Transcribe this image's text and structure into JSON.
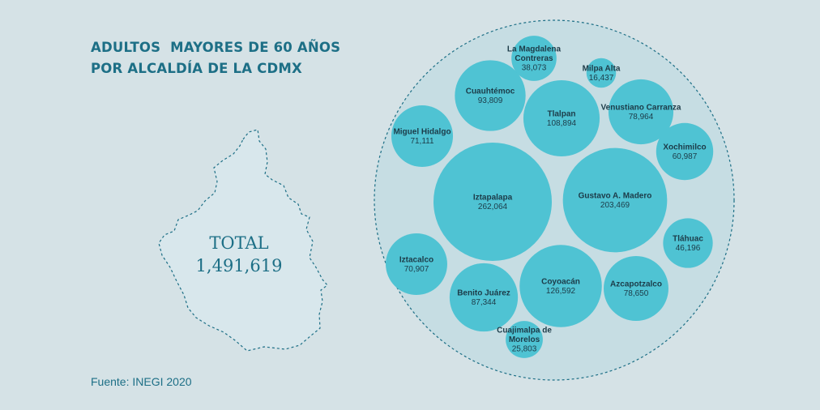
{
  "title_line1": "ADULTOS  MAYORES DE 60 AÑOS",
  "title_line2": "POR ALCALDÍA DE LA CDMX",
  "total_label": "TOTAL",
  "total_value": "1,491,619",
  "source": "Fuente: INEGI 2020",
  "colors": {
    "background": "#d5e2e6",
    "bubble": "#4fc3d3",
    "accent": "#1d6f86",
    "text": "#1c3b48"
  },
  "chart_data": {
    "type": "bubble",
    "title": "ADULTOS  MAYORES DE 60 AÑOS POR ALCALDÍA DE LA CDMX",
    "total": 1491619,
    "categories": [
      "Iztapalapa",
      "Gustavo A. Madero",
      "Coyoacán",
      "Tlalpan",
      "Cuauhtémoc",
      "Benito Juárez",
      "Venustiano Carranza",
      "Azcapotzalco",
      "Miguel Hidalgo",
      "Iztacalco",
      "Xochimilco",
      "Tláhuac",
      "La Magdalena Contreras",
      "Cuajimalpa de Morelos",
      "Milpa Alta"
    ],
    "values": [
      262064,
      203469,
      126592,
      108894,
      93809,
      87344,
      78964,
      78650,
      71111,
      70907,
      60987,
      46196,
      38073,
      25803,
      16437
    ],
    "labels": [
      {
        "name": [
          "Iztapalapa"
        ],
        "value": "262,064"
      },
      {
        "name": [
          "Gustavo A. Madero"
        ],
        "value": "203,469"
      },
      {
        "name": [
          "Coyoacán"
        ],
        "value": "126,592"
      },
      {
        "name": [
          "Tlalpan"
        ],
        "value": "108,894"
      },
      {
        "name": [
          "Cuauhtémoc"
        ],
        "value": "93,809"
      },
      {
        "name": [
          "Benito Juárez"
        ],
        "value": "87,344"
      },
      {
        "name": [
          "Venustiano Carranza"
        ],
        "value": "78,964"
      },
      {
        "name": [
          "Azcapotzalco"
        ],
        "value": "78,650"
      },
      {
        "name": [
          "Miguel Hidalgo"
        ],
        "value": "71,111"
      },
      {
        "name": [
          "Iztacalco"
        ],
        "value": "70,907"
      },
      {
        "name": [
          "Xochimilco"
        ],
        "value": "60,987"
      },
      {
        "name": [
          "Tláhuac"
        ],
        "value": "46,196"
      },
      {
        "name": [
          "La Magdalena",
          "Contreras"
        ],
        "value": "38,073"
      },
      {
        "name": [
          "Cuajimalpa de",
          "Morelos"
        ],
        "value": "25,803"
      },
      {
        "name": [
          "Milpa Alta"
        ],
        "value": "16,437"
      }
    ]
  }
}
